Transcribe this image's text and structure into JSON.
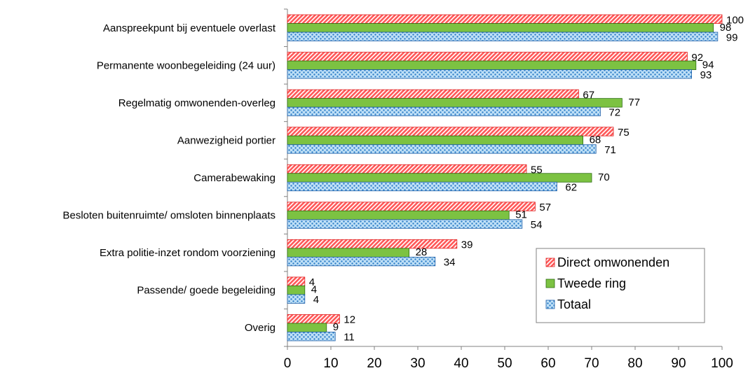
{
  "chart_data": {
    "type": "bar",
    "orientation": "horizontal",
    "title": "",
    "xlabel": "",
    "ylabel": "",
    "xlim": [
      0,
      100
    ],
    "x_ticks": [
      0,
      10,
      20,
      30,
      40,
      50,
      60,
      70,
      80,
      90,
      100
    ],
    "grid": false,
    "legend_position": "bottom-right",
    "categories": [
      "Aanspreekpunt bij eventuele overlast",
      "Permanente woonbegeleiding (24 uur)",
      "Regelmatig omwonenden-overleg",
      "Aanwezigheid portier",
      "Camerabewaking",
      "Besloten buitenruimte/ omsloten binnenplaats",
      "Extra politie-inzet rondom voorziening",
      "Passende/ goede begeleiding",
      "Overig"
    ],
    "series": [
      {
        "name": "Direct omwonenden",
        "values": [
          100,
          92,
          67,
          75,
          55,
          57,
          39,
          4,
          12
        ],
        "color": "#ff3b3b",
        "pattern": "diagonal-hatch"
      },
      {
        "name": "Tweede ring",
        "values": [
          98,
          94,
          77,
          68,
          70,
          51,
          28,
          4,
          9
        ],
        "color": "#7cc242",
        "pattern": "solid"
      },
      {
        "name": "Totaal",
        "values": [
          99,
          93,
          72,
          71,
          62,
          54,
          34,
          4,
          11
        ],
        "color": "#3f8fd6",
        "pattern": "dots"
      }
    ]
  }
}
